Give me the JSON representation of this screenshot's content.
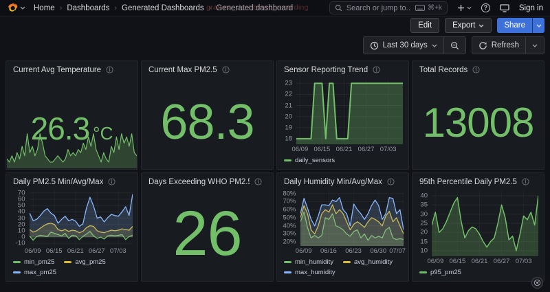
{
  "nav": {
    "breadcrumbs": [
      "Home",
      "Dashboards",
      "Generated Dashboards",
      "Generated dashboard"
    ],
    "watermark": "grafana_dashboard_recording",
    "search_placeholder": "Search or jump to...",
    "search_shortcut": "⌘+k",
    "signin_label": "Sign in"
  },
  "toolbar": {
    "edit": "Edit",
    "export": "Export",
    "share": "Share"
  },
  "timebar": {
    "range": "Last 30 days",
    "refresh": "Refresh"
  },
  "colors": {
    "green": "#73bf69",
    "yellow": "#d9bb38",
    "blue": "#8ab8ff",
    "share_accent": "#3d71d9",
    "panel_bg": "#181b1f",
    "page_bg": "#111217"
  },
  "panels": [
    {
      "title": "Current Avg Temperature",
      "type": "stat",
      "value": "26.3",
      "unit": "°C",
      "chart": 0
    },
    {
      "title": "Current Max PM2.5",
      "type": "stat",
      "value": "68.3"
    },
    {
      "title": "Sensor Reporting Trend",
      "type": "timeseries",
      "chart": 1
    },
    {
      "title": "Total Records",
      "type": "stat",
      "value": "13008"
    },
    {
      "title": "Daily PM2.5 Min/Avg/Max",
      "type": "timeseries",
      "chart": 2
    },
    {
      "title": "Days Exceeding WHO PM2.5 Thr...",
      "type": "stat",
      "value": "26"
    },
    {
      "title": "Daily Humidity Min/Avg/Max",
      "type": "timeseries",
      "chart": 3
    },
    {
      "title": "95th Percentile Daily PM2.5",
      "type": "timeseries",
      "chart": 4
    }
  ],
  "chart_data": [
    {
      "type": "area",
      "title": "Current Avg Temperature sparkline",
      "hide_axes": true,
      "ylim": [
        20,
        34
      ],
      "fill_opacity": 0.25,
      "line_width": 1.2,
      "series": [
        {
          "name": "avg_temperature",
          "color": "#73bf69",
          "values": [
            23,
            22,
            24,
            22,
            25,
            23,
            27,
            24,
            31,
            25,
            27,
            24,
            26,
            31,
            28,
            24,
            23,
            22,
            22,
            23,
            24,
            23,
            22,
            23,
            26,
            24,
            25,
            24,
            26,
            25,
            28,
            26,
            30,
            27,
            31,
            26,
            24,
            22,
            25,
            23,
            22,
            27,
            25,
            30,
            26,
            31,
            28,
            30,
            27,
            31,
            25,
            24
          ]
        }
      ]
    },
    {
      "type": "area",
      "title": "Sensor Reporting Trend",
      "xlabel": "",
      "ylabel": "",
      "legend_position": "bottom",
      "grid": true,
      "dates": [
        "06/08",
        "06/09",
        "06/10",
        "06/11",
        "06/12",
        "06/13",
        "06/14",
        "06/15",
        "06/16",
        "06/17",
        "06/18",
        "06/19",
        "06/20",
        "06/21",
        "06/22",
        "06/23",
        "06/24",
        "06/25",
        "06/26",
        "06/27",
        "06/28",
        "06/29",
        "06/30",
        "07/01",
        "07/02",
        "07/03",
        "07/04",
        "07/05",
        "07/06",
        "07/07"
      ],
      "xticks": [
        "06/09",
        "06/15",
        "06/21",
        "06/27",
        "07/03"
      ],
      "yticks": [
        18,
        19,
        20,
        21,
        22,
        23
      ],
      "ylim": [
        17.5,
        23.45
      ],
      "fill_opacity": 0.3,
      "line_width": 2,
      "series": [
        {
          "name": "daily_sensors",
          "color": "#73bf69",
          "values": [
            18,
            18,
            18,
            18,
            18,
            23,
            23,
            23,
            18,
            23,
            23,
            18,
            18,
            18,
            18,
            23,
            23,
            23,
            23,
            23,
            23,
            23,
            23,
            23,
            23,
            23,
            23,
            23,
            23,
            23
          ]
        }
      ]
    },
    {
      "type": "area",
      "title": "Daily PM2.5 Min/Avg/Max",
      "xlabel": "",
      "ylabel": "",
      "legend_position": "bottom",
      "grid": true,
      "dates": [
        "06/08",
        "06/09",
        "06/10",
        "06/11",
        "06/12",
        "06/13",
        "06/14",
        "06/15",
        "06/16",
        "06/17",
        "06/18",
        "06/19",
        "06/20",
        "06/21",
        "06/22",
        "06/23",
        "06/24",
        "06/25",
        "06/26",
        "06/27",
        "06/28",
        "06/29",
        "06/30",
        "07/01",
        "07/02",
        "07/03",
        "07/04",
        "07/05",
        "07/06",
        "07/07"
      ],
      "xticks": [
        "06/09",
        "06/15",
        "06/21",
        "06/27",
        "07/03"
      ],
      "yticks": [
        -10,
        0,
        10,
        20,
        30,
        40,
        50,
        60,
        70
      ],
      "ylim": [
        -14,
        74
      ],
      "fill_opacity": 0.18,
      "line_width": 1.3,
      "series": [
        {
          "name": "min_pm25",
          "color": "#73bf69",
          "values": [
            2,
            -5,
            1,
            3,
            2,
            1,
            8,
            6,
            4,
            2,
            6,
            -2,
            3,
            2,
            -4,
            1,
            5,
            9,
            2,
            -2,
            0,
            -3,
            2,
            3,
            2,
            3,
            4,
            -4,
            1,
            3
          ]
        },
        {
          "name": "avg_pm25",
          "color": "#d9bb38",
          "values": [
            12,
            8,
            10,
            14,
            18,
            21,
            22,
            20,
            12,
            10,
            12,
            9,
            11,
            10,
            7,
            9,
            15,
            18,
            17,
            10,
            8,
            7,
            9,
            11,
            10,
            11,
            13,
            12,
            11,
            17
          ]
        },
        {
          "name": "max_pm25",
          "color": "#8ab8ff",
          "values": [
            38,
            26,
            28,
            34,
            41,
            45,
            38,
            34,
            22,
            28,
            33,
            26,
            28,
            25,
            17,
            21,
            46,
            63,
            49,
            30,
            32,
            24,
            31,
            36,
            34,
            33,
            40,
            48,
            34,
            68
          ]
        }
      ]
    },
    {
      "type": "area",
      "title": "Daily Humidity Min/Avg/Max",
      "xlabel": "",
      "ylabel": "",
      "legend_position": "bottom",
      "grid": true,
      "y_suffix": "%",
      "dates": [
        "06/08",
        "06/09",
        "06/10",
        "06/11",
        "06/12",
        "06/13",
        "06/14",
        "06/15",
        "06/16",
        "06/17",
        "06/18",
        "06/19",
        "06/20",
        "06/21",
        "06/22",
        "06/23",
        "06/24",
        "06/25",
        "06/26",
        "06/27",
        "06/28",
        "06/29",
        "06/30",
        "07/01",
        "07/02",
        "07/03",
        "07/04",
        "07/05",
        "07/06",
        "07/07"
      ],
      "xticks": [
        "06/09",
        "06/16",
        "06/23",
        "06/30",
        "07/07"
      ],
      "yticks": [
        20,
        30,
        40,
        50,
        60,
        70,
        80
      ],
      "ylim": [
        15,
        84
      ],
      "fill_opacity": 0.18,
      "line_width": 1.3,
      "series": [
        {
          "name": "min_humidity",
          "color": "#73bf69",
          "values": [
            45,
            57,
            38,
            25,
            28,
            25,
            28,
            50,
            48,
            55,
            40,
            38,
            35,
            30,
            27,
            33,
            35,
            25,
            30,
            22,
            28,
            25,
            27,
            25,
            35,
            38,
            25,
            23,
            24,
            23
          ]
        },
        {
          "name": "avg_humidity",
          "color": "#d9bb38",
          "values": [
            50,
            65,
            55,
            35,
            30,
            40,
            55,
            60,
            57,
            66,
            55,
            60,
            55,
            45,
            35,
            42,
            45,
            42,
            38,
            45,
            50,
            48,
            45,
            40,
            52,
            58,
            45,
            50,
            40,
            30
          ]
        },
        {
          "name": "max_humidity",
          "color": "#8ab8ff",
          "values": [
            55,
            74,
            62,
            48,
            40,
            52,
            66,
            66,
            65,
            72,
            70,
            75,
            60,
            55,
            40,
            67,
            60,
            55,
            48,
            55,
            65,
            72,
            65,
            48,
            55,
            75,
            74,
            55,
            60,
            35
          ]
        }
      ]
    },
    {
      "type": "area",
      "title": "95th Percentile Daily PM2.5",
      "xlabel": "",
      "ylabel": "",
      "legend_position": "bottom",
      "grid": true,
      "dates": [
        "06/08",
        "06/09",
        "06/10",
        "06/11",
        "06/12",
        "06/13",
        "06/14",
        "06/15",
        "06/16",
        "06/17",
        "06/18",
        "06/19",
        "06/20",
        "06/21",
        "06/22",
        "06/23",
        "06/24",
        "06/25",
        "06/26",
        "06/27",
        "06/28",
        "06/29",
        "06/30",
        "07/01",
        "07/02",
        "07/03",
        "07/04",
        "07/05",
        "07/06",
        "07/07"
      ],
      "xticks": [
        "06/09",
        "06/15",
        "06/21",
        "06/27",
        "07/03"
      ],
      "yticks": [
        10,
        15,
        20,
        25,
        30,
        35,
        40
      ],
      "ylim": [
        7,
        43
      ],
      "fill_opacity": 0.25,
      "line_width": 1.5,
      "series": [
        {
          "name": "p95_pm25",
          "color": "#73bf69",
          "values": [
            24,
            31,
            20,
            22,
            26,
            31,
            36,
            39,
            26,
            17,
            21,
            23,
            22,
            19,
            15,
            12,
            15,
            17,
            25,
            35,
            28,
            16,
            18,
            10,
            19,
            29,
            27,
            31,
            24,
            40
          ]
        }
      ]
    }
  ]
}
